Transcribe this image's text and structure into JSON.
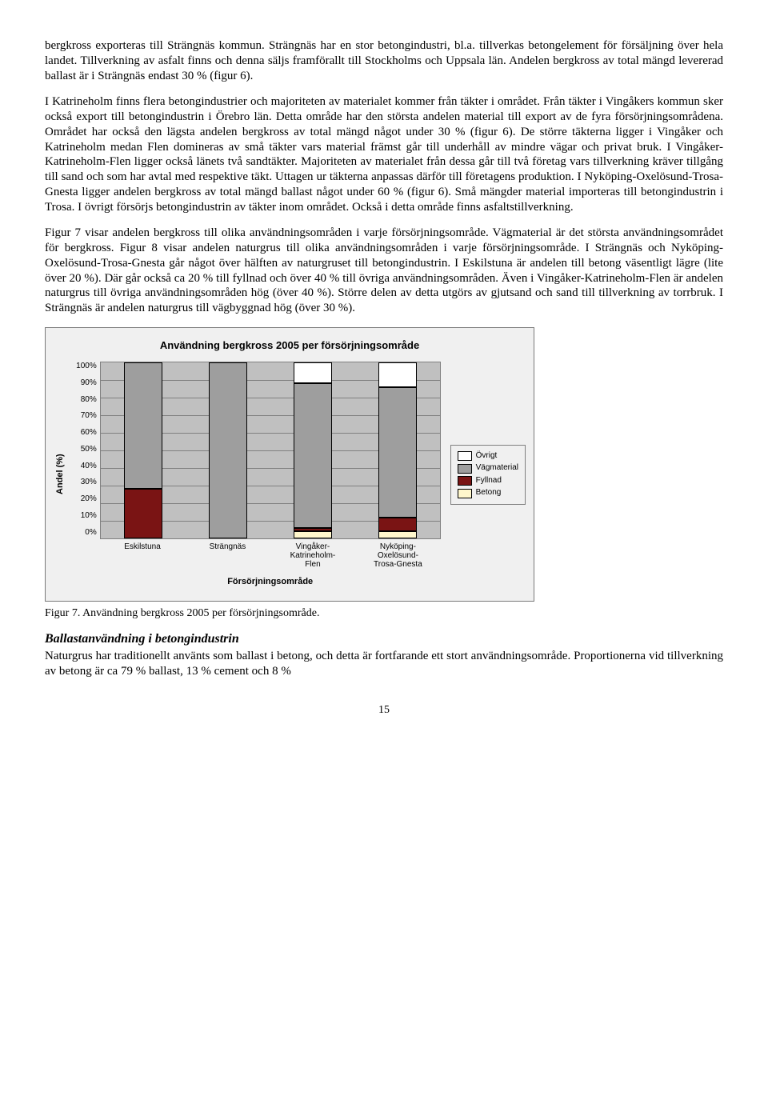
{
  "paragraphs": {
    "p1": "bergkross exporteras till Strängnäs kommun. Strängnäs har en stor betongindustri, bl.a. tillverkas betongelement för försäljning över hela landet. Tillverkning av asfalt finns och denna säljs framförallt till Stockholms och Uppsala län. Andelen bergkross av total mängd levererad ballast är i Strängnäs endast 30 % (figur 6).",
    "p2": "I Katrineholm finns flera betongindustrier och majoriteten av materialet kommer från täkter i området. Från täkter i Vingåkers kommun sker också export till betongindustrin i Örebro län. Detta område har den största andelen material till export av de fyra försörjningsområdena. Området har också den lägsta andelen bergkross av total mängd något under 30 % (figur 6). De större täkterna ligger i Vingåker och Katrineholm medan Flen domineras av små täkter vars material främst går till underhåll av mindre vägar och privat bruk. I Vingåker-Katrineholm-Flen ligger också länets två sandtäkter. Majoriteten av materialet från dessa går till två företag vars tillverkning kräver tillgång till sand och som har avtal med respektive täkt. Uttagen ur täkterna anpassas därför till företagens produktion. I Nyköping-Oxelösund-Trosa-Gnesta ligger andelen bergkross av total mängd ballast något under 60 % (figur 6). Små mängder material importeras till betongindustrin i Trosa. I övrigt försörjs betongindustrin av täkter inom området. Också i detta område finns asfaltstillverkning.",
    "p3": "Figur 7 visar andelen bergkross till olika användningsområden i varje försörjningsområde. Vägmaterial är det största användningsområdet för bergkross. Figur 8 visar andelen naturgrus till olika användningsområden i varje försörjningsområde. I Strängnäs och Nyköping-Oxelösund-Trosa-Gnesta går något över hälften av naturgruset till betongindustrin. I Eskilstuna är andelen till betong väsentligt lägre (lite över 20 %). Där går också ca 20 % till fyllnad och över 40 % till övriga användningsområden. Även i Vingåker-Katrineholm-Flen är andelen naturgrus till övriga användningsområden hög (över 40 %). Större delen av detta utgörs av gjutsand och sand till tillverkning av torrbruk. I Strängnäs är andelen naturgrus till vägbyggnad hög (över 30 %)."
  },
  "chart": {
    "title": "Användning bergkross 2005 per försörjningsområde",
    "yaxis_label": "Andel (%)",
    "xaxis_label": "Försörjningsområde",
    "yticks": [
      "100%",
      "90%",
      "80%",
      "70%",
      "60%",
      "50%",
      "40%",
      "30%",
      "20%",
      "10%",
      "0%"
    ],
    "categories": [
      "Eskilstuna",
      "Strängnäs",
      "Vingåker-\nKatrineholm-\nFlen",
      "Nyköping-\nOxelösund-\nTrosa-Gnesta"
    ],
    "series": [
      {
        "name": "Övrigt",
        "color": "#ffffff"
      },
      {
        "name": "Vägmaterial",
        "color": "#9e9e9e"
      },
      {
        "name": "Fyllnad",
        "color": "#7a1414"
      },
      {
        "name": "Betong",
        "color": "#fff7cc"
      }
    ],
    "data": [
      {
        "betong": 0,
        "fyllnad": 28,
        "vag": 72,
        "ovrigt": 0
      },
      {
        "betong": 0,
        "fyllnad": 0,
        "vag": 100,
        "ovrigt": 0
      },
      {
        "betong": 4,
        "fyllnad": 2,
        "vag": 82,
        "ovrigt": 12
      },
      {
        "betong": 4,
        "fyllnad": 8,
        "vag": 74,
        "ovrigt": 14
      }
    ],
    "plot_bg": "#c0c0c0",
    "grid_color": "#808080",
    "frame_bg": "#f0f0f0"
  },
  "caption": "Figur 7. Användning bergkross 2005 per försörjningsområde.",
  "subhead": "Ballastanvändning i betongindustrin",
  "p4": "Naturgrus har traditionellt använts som ballast i betong, och detta är fortfarande ett stort användningsområde. Proportionerna vid tillverkning av betong är ca 79 % ballast, 13 % cement och 8 %",
  "pagenum": "15"
}
